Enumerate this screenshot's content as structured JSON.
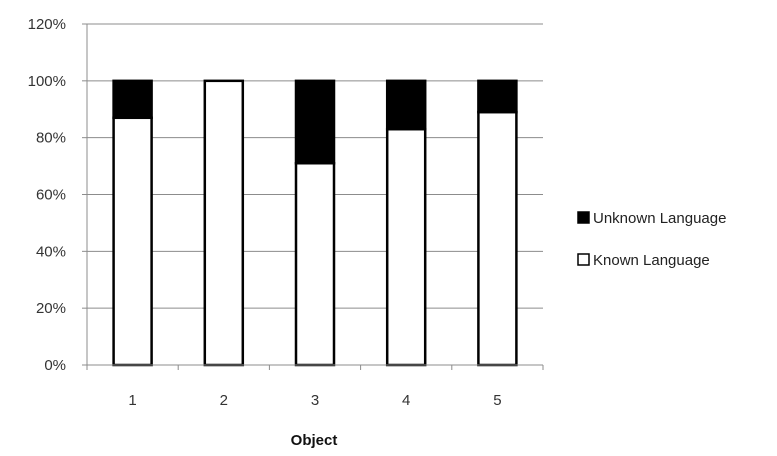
{
  "chart_data": {
    "type": "bar",
    "stacked": true,
    "percent_stacked": true,
    "categories": [
      "1",
      "2",
      "3",
      "4",
      "5"
    ],
    "series": [
      {
        "name": "Known Language",
        "values": [
          87,
          100,
          71,
          83,
          89
        ],
        "color": "#ffffff"
      },
      {
        "name": "Unknown Language",
        "values": [
          13,
          0,
          29,
          17,
          11
        ],
        "color": "#000000"
      }
    ],
    "xlabel": "Object",
    "ylabel": "",
    "ylim": [
      0,
      120
    ],
    "y_ticks": [
      "0%",
      "20%",
      "40%",
      "60%",
      "80%",
      "100%",
      "120%"
    ],
    "grid": true,
    "legend": {
      "position": "right",
      "items": [
        "Unknown Language",
        "Known Language"
      ]
    }
  }
}
